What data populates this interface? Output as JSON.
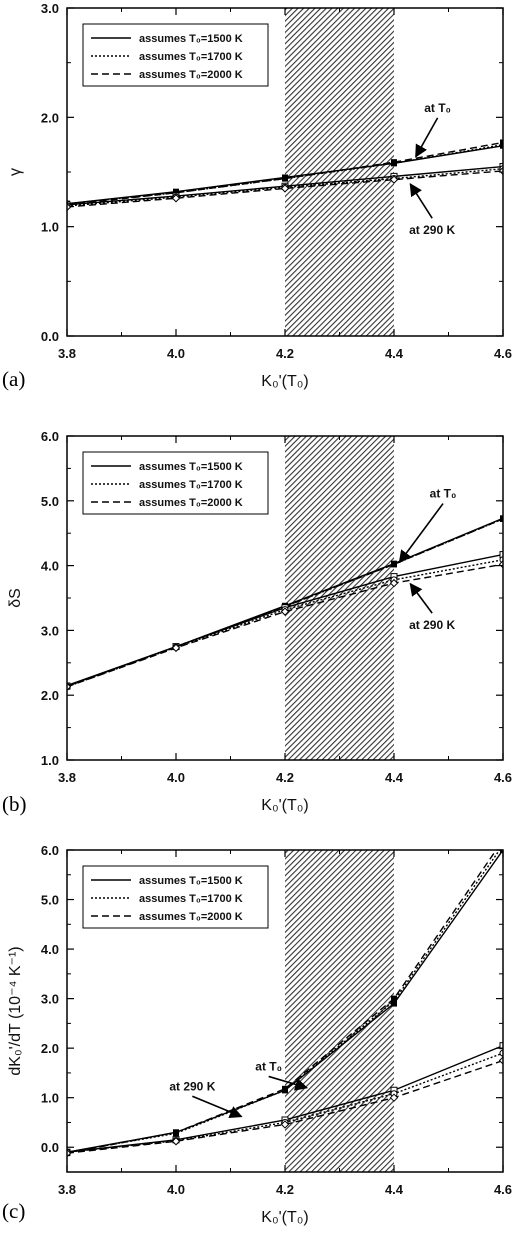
{
  "chart_data": [
    {
      "type": "line",
      "panel_label": "(a)",
      "ylabel": "γ",
      "xlabel": "K₀'(T₀)",
      "xlim": [
        3.8,
        4.6
      ],
      "ylim": [
        0.0,
        3.0
      ],
      "xticks": [
        "3.8",
        "4.0",
        "4.2",
        "4.4",
        "4.6"
      ],
      "yticks": [
        "0.0",
        "1.0",
        "2.0",
        "3.0"
      ],
      "shaded_x": [
        4.2,
        4.4
      ],
      "legend_position": "top-left",
      "legend": [
        "assumes T₀=1500 K",
        "assumes T₀=1700 K",
        "assumes T₀=2000 K"
      ],
      "annotations": [
        {
          "text": "at T₀",
          "x": 4.48,
          "y": 2.05,
          "tx": 4.44,
          "ty": 1.64
        },
        {
          "text": "at 290 K",
          "x": 4.47,
          "y": 0.95,
          "tx": 4.43,
          "ty": 1.39
        }
      ],
      "series": [
        {
          "group": "at T₀",
          "dash": "solid",
          "marker": "filled-square",
          "x": [
            3.8,
            4.0,
            4.2,
            4.4,
            4.6
          ],
          "y": [
            1.21,
            1.32,
            1.45,
            1.58,
            1.74
          ]
        },
        {
          "group": "at T₀",
          "dash": "dotted",
          "marker": "filled-square",
          "x": [
            3.8,
            4.0,
            4.2,
            4.4,
            4.6
          ],
          "y": [
            1.21,
            1.31,
            1.44,
            1.58,
            1.75
          ]
        },
        {
          "group": "at T₀",
          "dash": "dashed",
          "marker": "filled-square",
          "x": [
            3.8,
            4.0,
            4.2,
            4.4,
            4.6
          ],
          "y": [
            1.2,
            1.31,
            1.44,
            1.59,
            1.77
          ]
        },
        {
          "group": "at 290 K",
          "dash": "solid",
          "marker": "open-square",
          "x": [
            3.8,
            4.0,
            4.2,
            4.4,
            4.6
          ],
          "y": [
            1.2,
            1.28,
            1.37,
            1.46,
            1.55
          ]
        },
        {
          "group": "at 290 K",
          "dash": "dotted",
          "marker": "open-circle",
          "x": [
            3.8,
            4.0,
            4.2,
            4.4,
            4.6
          ],
          "y": [
            1.19,
            1.27,
            1.36,
            1.44,
            1.53
          ]
        },
        {
          "group": "at 290 K",
          "dash": "dashed",
          "marker": "open-diamond",
          "x": [
            3.8,
            4.0,
            4.2,
            4.4,
            4.6
          ],
          "y": [
            1.18,
            1.26,
            1.35,
            1.43,
            1.51
          ]
        }
      ]
    },
    {
      "type": "line",
      "panel_label": "(b)",
      "ylabel": "δS",
      "xlabel": "K₀'(T₀)",
      "xlim": [
        3.8,
        4.6
      ],
      "ylim": [
        1.0,
        6.0
      ],
      "xticks": [
        "3.8",
        "4.0",
        "4.2",
        "4.4",
        "4.6"
      ],
      "yticks": [
        "1.0",
        "2.0",
        "3.0",
        "4.0",
        "5.0",
        "6.0"
      ],
      "shaded_x": [
        4.2,
        4.4
      ],
      "legend_position": "top-left",
      "legend": [
        "assumes T₀=1500 K",
        "assumes T₀=1700 K",
        "assumes T₀=2000 K"
      ],
      "annotations": [
        {
          "text": "at T₀",
          "x": 4.49,
          "y": 5.05,
          "tx": 4.41,
          "ty": 4.05
        },
        {
          "text": "at 290 K",
          "x": 4.47,
          "y": 3.05,
          "tx": 4.43,
          "ty": 3.72
        }
      ],
      "series": [
        {
          "group": "at T₀",
          "dash": "solid",
          "marker": "filled-square",
          "x": [
            3.8,
            4.0,
            4.2,
            4.4,
            4.6
          ],
          "y": [
            2.15,
            2.75,
            3.38,
            4.03,
            4.73
          ]
        },
        {
          "group": "at T₀",
          "dash": "dotted",
          "marker": "filled-square",
          "x": [
            3.8,
            4.0,
            4.2,
            4.4,
            4.6
          ],
          "y": [
            2.14,
            2.75,
            3.37,
            4.02,
            4.72
          ]
        },
        {
          "group": "at T₀",
          "dash": "dashed",
          "marker": "filled-square",
          "x": [
            3.8,
            4.0,
            4.2,
            4.4,
            4.6
          ],
          "y": [
            2.14,
            2.75,
            3.37,
            4.02,
            4.72
          ]
        },
        {
          "group": "at 290 K",
          "dash": "solid",
          "marker": "open-square",
          "x": [
            3.8,
            4.0,
            4.2,
            4.4,
            4.6
          ],
          "y": [
            2.14,
            2.75,
            3.35,
            3.83,
            4.17
          ]
        },
        {
          "group": "at 290 K",
          "dash": "dotted",
          "marker": "open-circle",
          "x": [
            3.8,
            4.0,
            4.2,
            4.4,
            4.6
          ],
          "y": [
            2.13,
            2.74,
            3.32,
            3.78,
            4.09
          ]
        },
        {
          "group": "at 290 K",
          "dash": "dashed",
          "marker": "open-diamond",
          "x": [
            3.8,
            4.0,
            4.2,
            4.4,
            4.6
          ],
          "y": [
            2.13,
            2.73,
            3.29,
            3.73,
            4.02
          ]
        }
      ]
    },
    {
      "type": "line",
      "panel_label": "(c)",
      "ylabel": "dK₀'/dT (10⁻⁴ K⁻¹)",
      "xlabel": "K₀'(T₀)",
      "xlim": [
        3.8,
        4.6
      ],
      "ylim": [
        -0.5,
        6.0
      ],
      "xticks": [
        "3.8",
        "4.0",
        "4.2",
        "4.4",
        "4.6"
      ],
      "yticks": [
        "0.0",
        "1.0",
        "2.0",
        "3.0",
        "4.0",
        "5.0",
        "6.0"
      ],
      "shaded_x": [
        4.2,
        4.4
      ],
      "legend_position": "top-left",
      "legend": [
        "assumes T₀=1500 K",
        "assumes T₀=1700 K",
        "assumes T₀=2000 K"
      ],
      "annotations": [
        {
          "text": "at T₀",
          "x": 4.17,
          "y": 1.55,
          "tx": 4.24,
          "ty": 1.2
        },
        {
          "text": "at 290 K",
          "x": 4.03,
          "y": 1.15,
          "tx": 4.12,
          "ty": 0.62
        }
      ],
      "series": [
        {
          "group": "at T₀",
          "dash": "solid",
          "marker": "filled-square",
          "x": [
            3.8,
            4.0,
            4.2,
            4.4,
            4.6
          ],
          "y": [
            -0.1,
            0.3,
            1.15,
            2.9,
            6.0
          ]
        },
        {
          "group": "at T₀",
          "dash": "dotted",
          "marker": "filled-square",
          "x": [
            3.8,
            4.0,
            4.2,
            4.4,
            4.6
          ],
          "y": [
            -0.1,
            0.28,
            1.15,
            2.95,
            6.1
          ]
        },
        {
          "group": "at T₀",
          "dash": "dashed",
          "marker": "filled-square",
          "x": [
            3.8,
            4.0,
            4.2,
            4.4,
            4.6
          ],
          "y": [
            -0.12,
            0.3,
            1.18,
            3.0,
            6.2
          ]
        },
        {
          "group": "at 290 K",
          "dash": "solid",
          "marker": "open-square",
          "x": [
            3.8,
            4.0,
            4.2,
            4.4,
            4.6
          ],
          "y": [
            -0.1,
            0.15,
            0.55,
            1.15,
            2.05
          ]
        },
        {
          "group": "at 290 K",
          "dash": "dotted",
          "marker": "open-circle",
          "x": [
            3.8,
            4.0,
            4.2,
            4.4,
            4.6
          ],
          "y": [
            -0.1,
            0.13,
            0.5,
            1.08,
            1.9
          ]
        },
        {
          "group": "at 290 K",
          "dash": "dashed",
          "marker": "open-diamond",
          "x": [
            3.8,
            4.0,
            4.2,
            4.4,
            4.6
          ],
          "y": [
            -0.12,
            0.12,
            0.46,
            1.0,
            1.75
          ]
        }
      ]
    }
  ]
}
